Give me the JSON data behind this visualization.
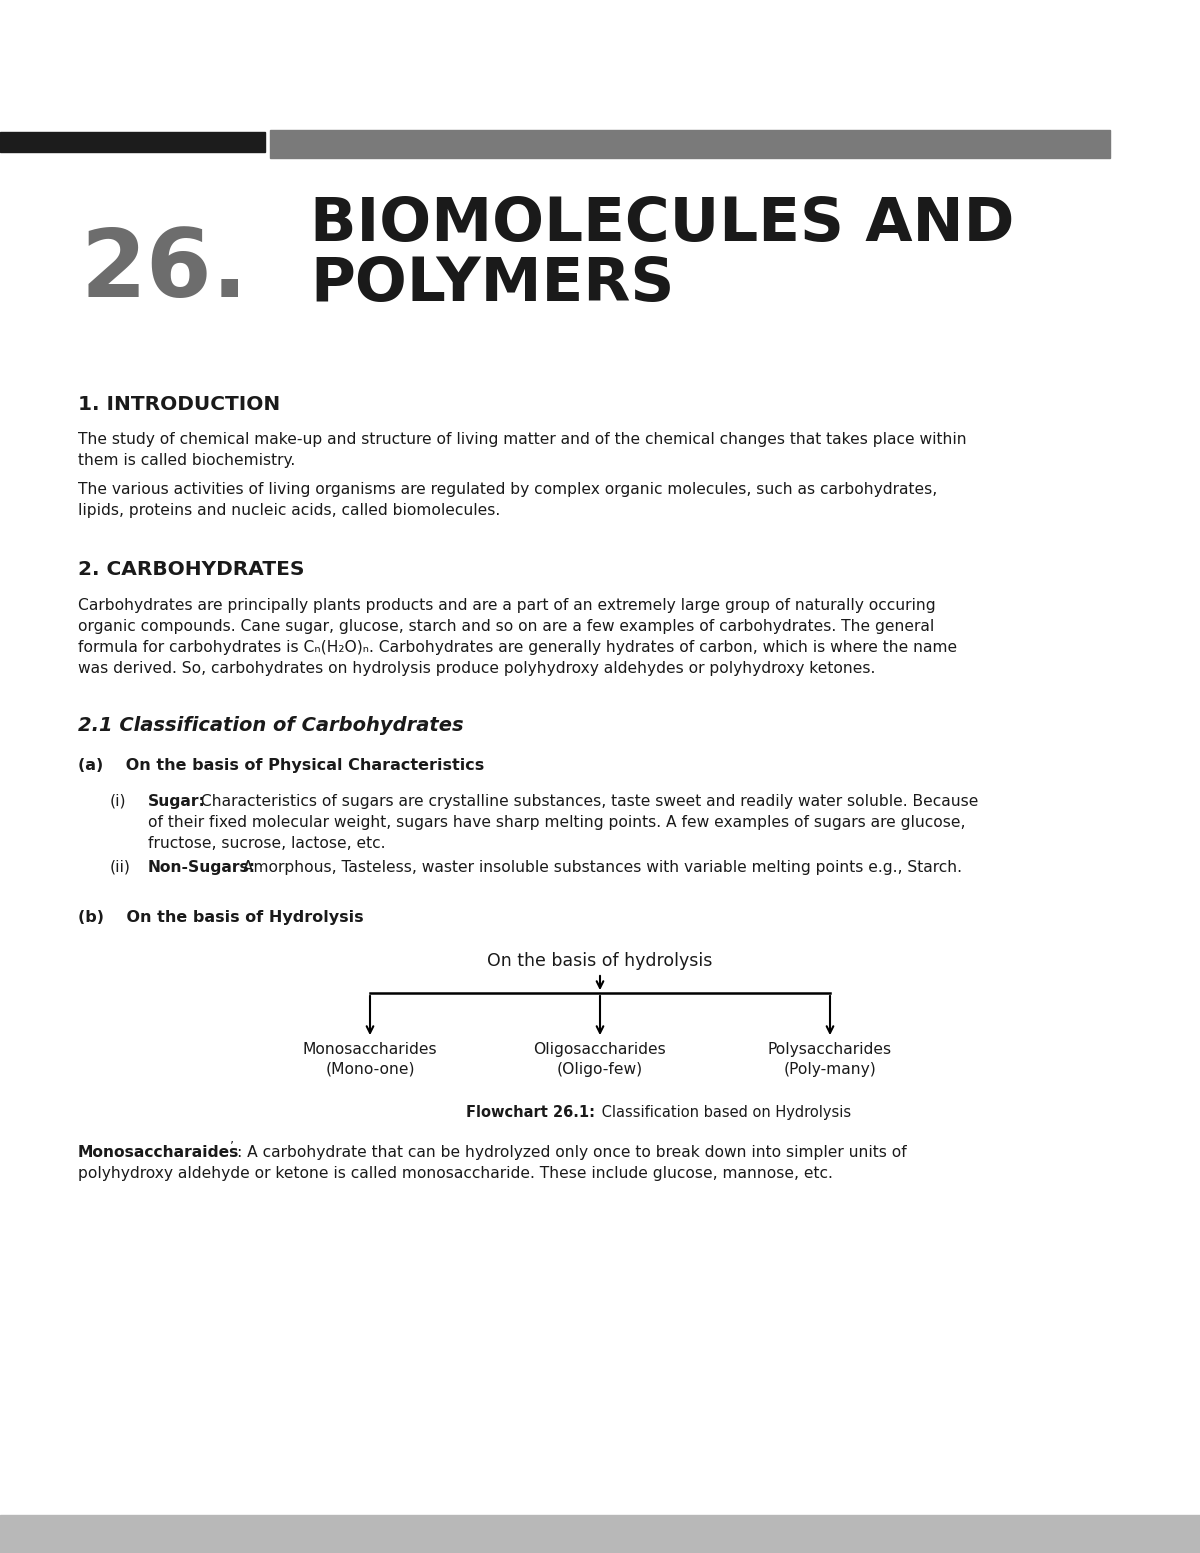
{
  "page_bg": "#ffffff",
  "bar_black": "#1c1c1c",
  "bar_gray": "#7a7a7a",
  "footer_gray": "#b8b8b8",
  "text_dark": "#1a1a1a",
  "chapter_number": "26.",
  "chapter_title_line1": "BIOMOLECULES AND",
  "chapter_title_line2": "POLYMERS",
  "section1_title": "1. INTRODUCTION",
  "para1_line1": "The study of chemical make-up and structure of living matter and of the chemical changes that takes place within",
  "para1_line2": "them is called biochemistry.",
  "para2_line1": "The various activities of living organisms are regulated by complex organic molecules, such as carbohydrates,",
  "para2_line2": "lipids, proteins and nucleic acids, called biomolecules.",
  "section2_title": "2. CARBOHYDRATES",
  "para3_line1": "Carbohydrates are principally plants products and are a part of an extremely large group of naturally occuring",
  "para3_line2": "organic compounds. Cane sugar, glucose, starch and so on are a few examples of carbohydrates. The general",
  "para3_line3": "formula for carbohydrates is Cₙ(H₂O)ₙ. Carbohydrates are generally hydrates of carbon, which is where the name",
  "para3_line4": "was derived. So, carbohydrates on hydrolysis produce polyhydroxy aldehydes or polyhydroxy ketones.",
  "section21_title": "2.1 Classification of Carbohydrates",
  "subsec_a": "(a)    On the basis of Physical Characteristics",
  "item_i_num": "(i)",
  "item_i_bold": "Sugar:",
  "item_i_rest_1": " Characteristics of sugars are crystalline substances, taste sweet and readily water soluble. Because",
  "item_i_rest_2": "of their fixed molecular weight, sugars have sharp melting points. A few examples of sugars are glucose,",
  "item_i_rest_3": "fructose, sucrose, lactose, etc.",
  "item_ii_num": "(ii)",
  "item_ii_bold": "Non-Sugars:",
  "item_ii_rest": " Amorphous, Tasteless, waster insoluble substances with variable melting points e.g., Starch.",
  "subsec_b": "(b)    On the basis of Hydrolysis",
  "flowchart_top": "On the basis of hydrolysis",
  "fc_node1_l1": "Monosaccharides",
  "fc_node1_l2": "(Mono-one)",
  "fc_node2_l1": "Oligosaccharides",
  "fc_node2_l2": "(Oligo-few)",
  "fc_node3_l1": "Polysaccharides",
  "fc_node3_l2": "(Poly-many)",
  "caption_bold": "Flowchart 26.1:",
  "caption_rest": " Classification based on Hydrolysis",
  "mono_bold": "Monosaccharaides",
  "mono_super": "’",
  "mono_rest_1": ": A carbohydrate that can be hydrolyzed only once to break down into simpler units of",
  "mono_rest_2": "polyhydroxy aldehyde or ketone is called monosaccharide. These include glucose, mannose, etc."
}
